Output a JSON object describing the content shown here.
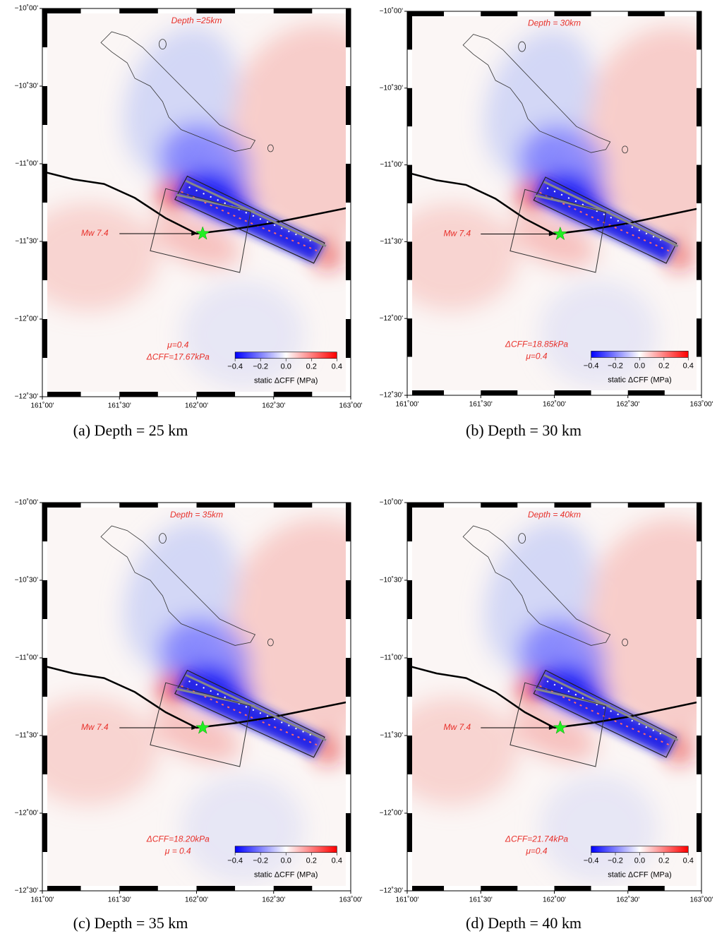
{
  "axes": {
    "xlim": [
      161,
      163
    ],
    "ylim": [
      -12.5,
      -10
    ],
    "xticks": [
      {
        "value": 161,
        "label": "161˚00'"
      },
      {
        "value": 161.5,
        "label": "161˚30'"
      },
      {
        "value": 162,
        "label": "162˚00'"
      },
      {
        "value": 162.5,
        "label": "162˚30'"
      },
      {
        "value": 163,
        "label": "163˚00'"
      }
    ],
    "yticks": [
      {
        "value": -10,
        "label": "−10˚00'"
      },
      {
        "value": -10.5,
        "label": "−10˚30'"
      },
      {
        "value": -11,
        "label": "−11˚00'"
      },
      {
        "value": -11.5,
        "label": "−11˚30'"
      },
      {
        "value": -12,
        "label": "−12˚00'"
      },
      {
        "value": -12.5,
        "label": "−12˚30'"
      }
    ]
  },
  "colorbar": {
    "label": "static ΔCFF (MPa)",
    "lim": [
      -0.4,
      0.4
    ],
    "ticks": [
      {
        "value": -0.4,
        "label": "−0.4"
      },
      {
        "value": -0.2,
        "label": "−0.2"
      },
      {
        "value": 0,
        "label": "0.0"
      },
      0.2,
      0.4
    ]
  },
  "panels": [
    {
      "depth_label": "Depth =25km",
      "event_label": "Mw 7.4",
      "notes": [
        "μ=0.4",
        "ΔCFF=17.67kPa"
      ],
      "caption": "(a)  Depth = 25 km"
    },
    {
      "depth_label": "Depth = 30km",
      "event_label": "Mw 7.4",
      "notes": [
        "ΔCFF=18.85kPa",
        "μ=0.4"
      ],
      "caption": "(b) Depth = 30 km"
    },
    {
      "depth_label": "Depth = 35km",
      "event_label": "Mw 7.4",
      "notes": [
        "ΔCFF=18.20kPa",
        "μ = 0.4"
      ],
      "caption": "(c) Depth = 35 km"
    },
    {
      "depth_label": "Depth = 40km",
      "event_label": "Mw 7.4",
      "notes": [
        "ΔCFF=21.74kPa",
        "μ=0.4"
      ],
      "caption": "(d) Depth = 40 km"
    }
  ]
}
